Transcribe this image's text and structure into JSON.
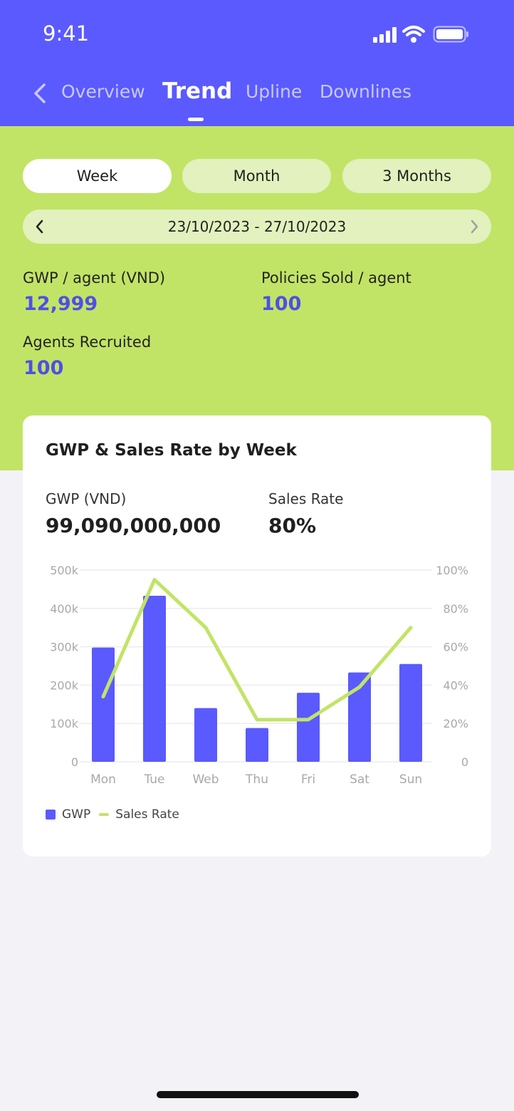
{
  "status_bar": {
    "time": "9:41"
  },
  "nav": {
    "tabs": [
      {
        "label": "Overview"
      },
      {
        "label": "Trend"
      },
      {
        "label": "Upline"
      },
      {
        "label": "Downlines"
      }
    ]
  },
  "period": {
    "options": [
      "Week",
      "Month",
      "3 Months"
    ],
    "date_range": "23/10/2023 - 27/10/2023"
  },
  "metrics": {
    "gwp_label": "GWP / agent (VND)",
    "gwp_value": "12,999",
    "policies_label": "Policies Sold / agent",
    "policies_value": "100",
    "recruited_label": "Agents Recruited",
    "recruited_value": "100"
  },
  "card": {
    "title": "GWP & Sales Rate by Week",
    "gwp_label": "GWP (VND)",
    "gwp_value": "99,090,000,000",
    "rate_label": "Sales Rate",
    "rate_value": "80%",
    "legend": {
      "bar": "GWP",
      "line": "Sales Rate"
    }
  },
  "colors": {
    "primary": "#5a5aff",
    "accent": "#c1e466"
  },
  "chart_data": {
    "type": "bar",
    "title": "GWP & Sales Rate by Week",
    "categories": [
      "Mon",
      "Tue",
      "Web",
      "Thu",
      "Fri",
      "Sat",
      "Sun"
    ],
    "y_left_ticks": [
      "0",
      "100k",
      "200k",
      "300k",
      "400k",
      "500k"
    ],
    "y_right_ticks": [
      "0",
      "20%",
      "40%",
      "60%",
      "80%",
      "100%"
    ],
    "ylim": [
      0,
      500000
    ],
    "y2lim": [
      0,
      100
    ],
    "series": [
      {
        "name": "GWP",
        "type": "bar",
        "axis": "left",
        "values": [
          298000,
          433000,
          140000,
          88000,
          180000,
          233000,
          255000
        ]
      },
      {
        "name": "Sales Rate",
        "type": "line",
        "axis": "right",
        "values": [
          34,
          95,
          70,
          22,
          22,
          39,
          70
        ]
      }
    ]
  }
}
